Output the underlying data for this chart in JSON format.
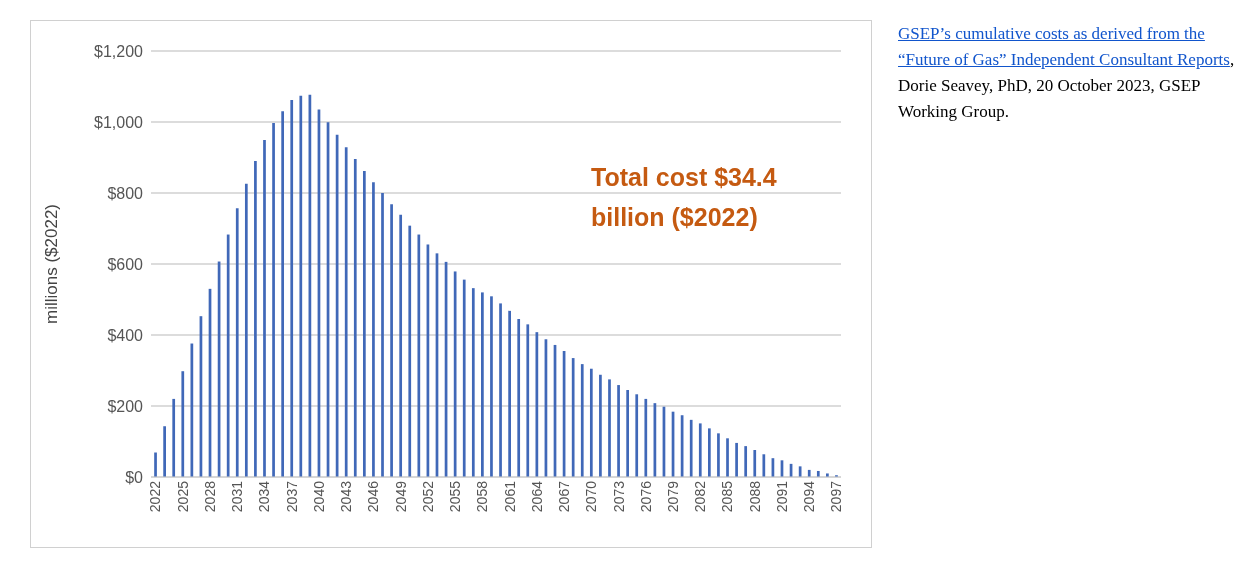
{
  "chart_data": {
    "type": "bar",
    "categories": [
      "2022",
      null,
      null,
      "2025",
      null,
      null,
      "2028",
      null,
      null,
      "2031",
      null,
      null,
      "2034",
      null,
      null,
      "2037",
      null,
      null,
      "2040",
      null,
      null,
      "2043",
      null,
      null,
      "2046",
      null,
      null,
      "2049",
      null,
      null,
      "2052",
      null,
      null,
      "2055",
      null,
      null,
      "2058",
      null,
      null,
      "2061",
      null,
      null,
      "2064",
      null,
      null,
      "2067",
      null,
      null,
      "2070",
      null,
      null,
      "2073",
      null,
      null,
      "2076",
      null,
      null,
      "2079",
      null,
      null,
      "2082",
      null,
      null,
      "2085",
      null,
      null,
      "2088",
      null,
      null,
      "2091",
      null,
      null,
      "2094",
      null,
      null,
      "2097"
    ],
    "values": [
      69,
      143,
      220,
      298,
      376,
      453,
      530,
      607,
      683,
      757,
      826,
      890,
      949,
      997,
      1030,
      1062,
      1074,
      1077,
      1035,
      999,
      964,
      929,
      896,
      862,
      830,
      800,
      768,
      739,
      708,
      683,
      655,
      630,
      606,
      579,
      556,
      532,
      520,
      509,
      489,
      468,
      445,
      430,
      408,
      388,
      372,
      355,
      335,
      318,
      305,
      288,
      275,
      259,
      245,
      233,
      220,
      208,
      198,
      184,
      174,
      161,
      151,
      137,
      123,
      109,
      96,
      87,
      76,
      64,
      53,
      47,
      37,
      30,
      20,
      17,
      10,
      5
    ],
    "color": "#4068b8",
    "ylabel": "millions ($2022)",
    "ylim": [
      0,
      1200
    ],
    "yticks": [
      {
        "value": 0,
        "label": "$0"
      },
      {
        "value": 200,
        "label": "$200"
      },
      {
        "value": 400,
        "label": "$400"
      },
      {
        "value": 600,
        "label": "$600"
      },
      {
        "value": 800,
        "label": "$800"
      },
      {
        "value": 1000,
        "label": "$1,000"
      },
      {
        "value": 1200,
        "label": "$1,200"
      }
    ],
    "grid": "y",
    "annotations": [
      "Total cost $34.4 billion ($2022)",
      "GSEP’s cumulative costs as derived from the “Future of Gas” Independent Consultant Reports",
      ", Dorie Seavey, PhD, 20 October 2023, GSEP Working Group."
    ]
  }
}
